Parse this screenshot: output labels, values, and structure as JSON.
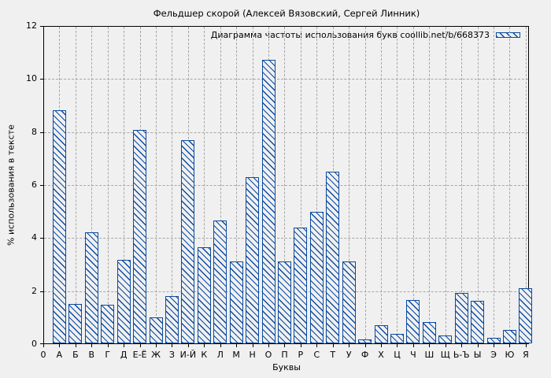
{
  "chart_data": {
    "type": "bar",
    "title": "Фельдшер скорой (Алексей Вязовский, Сергей Линник)",
    "legend": "Диаграмма частоты использования букв coollib.net/b/668373",
    "xlabel": "Буквы",
    "ylabel": "% использования в тексте",
    "origin_tick": "0",
    "ylim": [
      0,
      12
    ],
    "yticks": [
      0,
      2,
      4,
      6,
      8,
      10,
      12
    ],
    "grid": true,
    "legend_position": "top-right-inside",
    "bar_color": "#0a4aa0",
    "background_color": "#f0f0f0",
    "grid_color": "#a6a6a6",
    "hatch_style": "diagonal-backslash",
    "categories": [
      "А",
      "Б",
      "В",
      "Г",
      "Д",
      "Е-Ё",
      "Ж",
      "З",
      "И-Й",
      "К",
      "Л",
      "М",
      "Н",
      "О",
      "П",
      "Р",
      "С",
      "Т",
      "У",
      "Ф",
      "Х",
      "Ц",
      "Ч",
      "Ш",
      "Щ",
      "Ь-Ъ",
      "Ы",
      "Э",
      "Ю",
      "Я"
    ],
    "values": [
      8.85,
      1.5,
      4.2,
      1.45,
      3.15,
      8.1,
      1.0,
      1.8,
      7.7,
      3.65,
      4.65,
      3.1,
      6.3,
      10.75,
      3.1,
      4.4,
      5.0,
      6.5,
      3.1,
      0.15,
      0.7,
      0.35,
      1.65,
      0.8,
      0.3,
      1.9,
      1.6,
      0.2,
      0.5,
      2.1
    ]
  }
}
